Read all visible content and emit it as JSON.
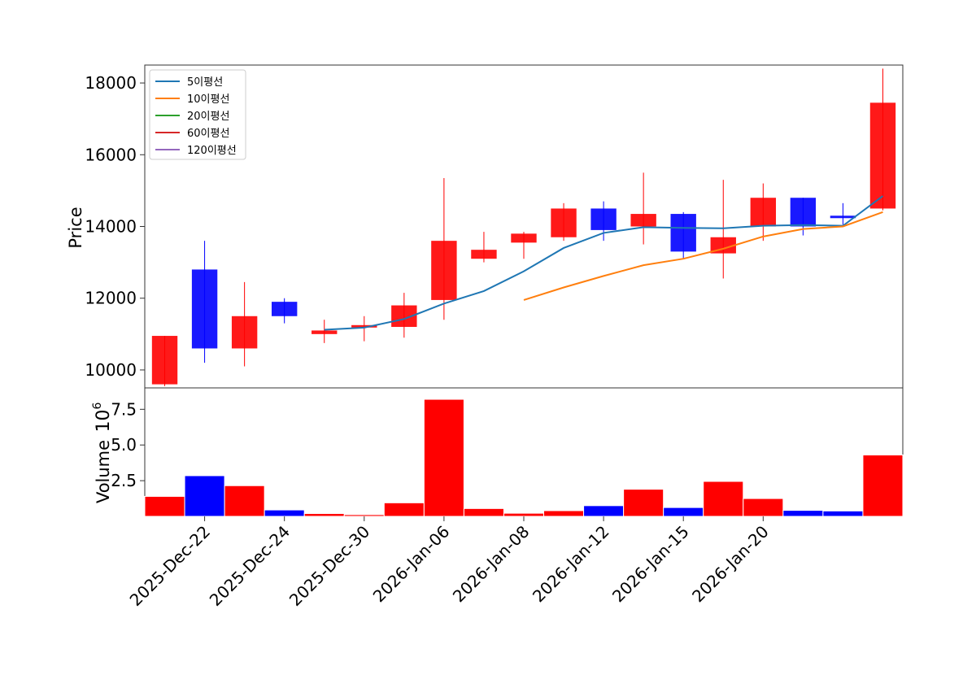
{
  "chart_data": [
    {
      "type": "candlestick",
      "ylabel": "Price",
      "ylim": [
        9500,
        18500
      ],
      "yticks": [
        10000,
        12000,
        14000,
        16000,
        18000
      ],
      "xtick_labels": [
        "2025-Dec-22",
        "2025-Dec-24",
        "2025-Dec-30",
        "2026-Jan-06",
        "2026-Jan-08",
        "2026-Jan-12",
        "2026-Jan-15",
        "2026-Jan-20"
      ],
      "xtick_positions": [
        1,
        3,
        5,
        7,
        9,
        11,
        13,
        15
      ],
      "colors": {
        "up": "#ff0000",
        "down": "#0000ff",
        "ma5": "#1f77b4",
        "ma10": "#ff7f0e",
        "ma20": "#2ca02c",
        "ma60": "#d62728",
        "ma120": "#9467bd"
      },
      "legend": [
        "5이평선",
        "10이평선",
        "20이평선",
        "60이평선",
        "120이평선"
      ],
      "candles": [
        {
          "open": 9600,
          "high": 10950,
          "low": 9550,
          "close": 10950
        },
        {
          "open": 12800,
          "high": 13600,
          "low": 10200,
          "close": 10600
        },
        {
          "open": 10600,
          "high": 12450,
          "low": 10100,
          "close": 11500
        },
        {
          "open": 11900,
          "high": 12000,
          "low": 11300,
          "close": 11500
        },
        {
          "open": 11000,
          "high": 11400,
          "low": 10750,
          "close": 11100
        },
        {
          "open": 11200,
          "high": 11500,
          "low": 10800,
          "close": 11250
        },
        {
          "open": 11200,
          "high": 12150,
          "low": 10900,
          "close": 11800
        },
        {
          "open": 11950,
          "high": 15350,
          "low": 11400,
          "close": 13600
        },
        {
          "open": 13100,
          "high": 13850,
          "low": 13000,
          "close": 13350
        },
        {
          "open": 13550,
          "high": 13850,
          "low": 13100,
          "close": 13800
        },
        {
          "open": 13700,
          "high": 14650,
          "low": 13600,
          "close": 14500
        },
        {
          "open": 14500,
          "high": 14700,
          "low": 13600,
          "close": 13900
        },
        {
          "open": 14000,
          "high": 15500,
          "low": 13500,
          "close": 14350
        },
        {
          "open": 14350,
          "high": 14400,
          "low": 13100,
          "close": 13300
        },
        {
          "open": 13250,
          "high": 15300,
          "low": 12550,
          "close": 13700
        },
        {
          "open": 14000,
          "high": 15200,
          "low": 13600,
          "close": 14800
        },
        {
          "open": 14800,
          "high": 14800,
          "low": 13750,
          "close": 14000
        },
        {
          "open": 14300,
          "high": 14650,
          "low": 14050,
          "close": 14250
        },
        {
          "open": 14500,
          "high": 18400,
          "low": 14450,
          "close": 17450
        }
      ],
      "ma5": [
        null,
        null,
        null,
        null,
        11120,
        11180,
        11420,
        11850,
        12200,
        12750,
        13400,
        13820,
        13980,
        13960,
        13950,
        14020,
        14040,
        14020,
        14850
      ],
      "ma10": [
        null,
        null,
        null,
        null,
        null,
        null,
        null,
        null,
        null,
        11950,
        12300,
        12620,
        12920,
        13100,
        13380,
        13720,
        13930,
        14000,
        14400
      ]
    },
    {
      "type": "bar",
      "ylabel": "Volume",
      "scale_label": "10",
      "scale_exponent": "6",
      "ylim": [
        0,
        9
      ],
      "yticks": [
        2.5,
        5.0,
        7.5
      ],
      "ytick_labels": [
        "2.5",
        "5.0",
        "7.5"
      ],
      "values": [
        1.4,
        2.85,
        2.15,
        0.45,
        0.2,
        0.12,
        0.95,
        8.2,
        0.55,
        0.22,
        0.4,
        0.75,
        1.9,
        0.62,
        2.45,
        1.25,
        0.42,
        0.38,
        4.3
      ],
      "colors": [
        "#ff0000",
        "#0000ff",
        "#ff0000",
        "#0000ff",
        "#ff0000",
        "#ff0000",
        "#ff0000",
        "#ff0000",
        "#ff0000",
        "#ff0000",
        "#ff0000",
        "#0000ff",
        "#ff0000",
        "#0000ff",
        "#ff0000",
        "#ff0000",
        "#0000ff",
        "#0000ff",
        "#ff0000"
      ]
    }
  ]
}
